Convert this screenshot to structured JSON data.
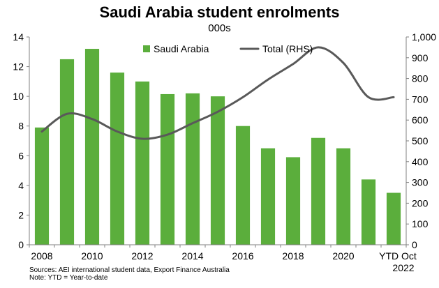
{
  "chart_data": {
    "type": "bar",
    "title": "Saudi Arabia student enrolments",
    "subtitle": "000s",
    "categories": [
      "2008",
      "2009",
      "2010",
      "2011",
      "2012",
      "2013",
      "2014",
      "2015",
      "2016",
      "2017",
      "2018",
      "2019",
      "2020",
      "2021",
      "YTD Oct 2022"
    ],
    "x_tick_labels": [
      "2008",
      "",
      "2010",
      "",
      "2012",
      "",
      "2014",
      "",
      "2016",
      "",
      "2018",
      "",
      "2020",
      "",
      "YTD Oct|2022"
    ],
    "series": [
      {
        "name": "Saudi Arabia",
        "type": "bar",
        "axis": "left",
        "color": "#5BAE3C",
        "values": [
          7.9,
          12.5,
          13.2,
          11.6,
          11.0,
          10.15,
          10.2,
          10.0,
          8.0,
          6.5,
          5.9,
          7.2,
          6.5,
          4.4,
          3.5
        ]
      },
      {
        "name": "Total (RHS)",
        "type": "line",
        "axis": "right",
        "color": "#595959",
        "values": [
          545,
          630,
          605,
          545,
          510,
          530,
          585,
          640,
          710,
          795,
          870,
          950,
          875,
          710,
          710
        ]
      }
    ],
    "y_left": {
      "min": 0,
      "max": 14,
      "ticks": [
        0,
        2,
        4,
        6,
        8,
        10,
        12,
        14
      ]
    },
    "y_right": {
      "min": 0,
      "max": 1000,
      "ticks": [
        "0",
        "100",
        "200",
        "300",
        "400",
        "500",
        "600",
        "700",
        "800",
        "900",
        "1,000"
      ]
    },
    "grid": false,
    "legend_position": "top-center"
  },
  "notes": {
    "source": "Sources: AEI international student data, Export Finance Australia",
    "ytd": "Note: YTD = Year-to-date"
  }
}
